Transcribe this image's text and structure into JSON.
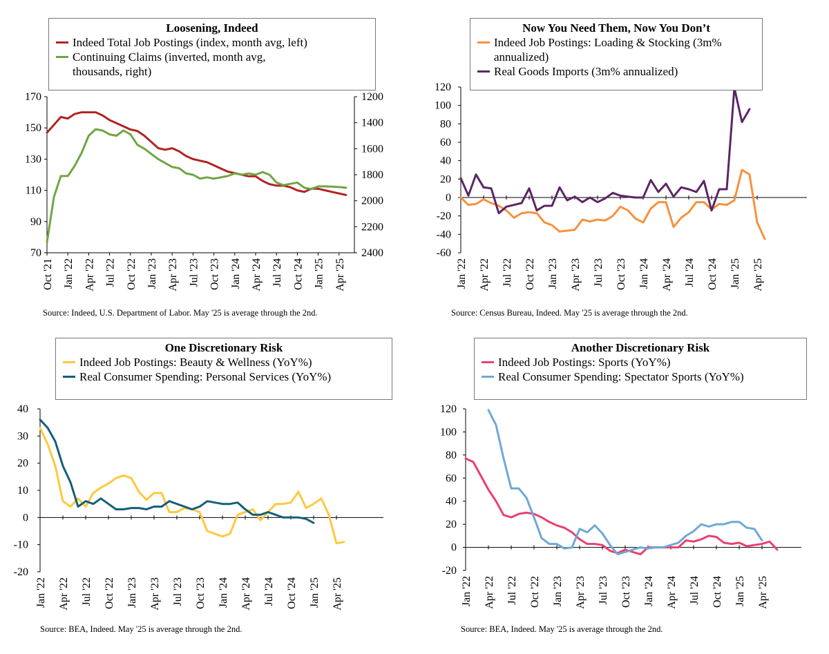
{
  "chart_data": [
    {
      "id": "p1",
      "type": "line",
      "title": "Loosening, Indeed",
      "x_tick_labels": [
        "Oct '21",
        "Jan '22",
        "Apr '22",
        "Jul '22",
        "Oct '22",
        "Jan '23",
        "Apr '23",
        "Jul '23",
        "Oct '23",
        "Jan '24",
        "Apr '24",
        "Jul '24",
        "Oct '24",
        "Jan '25",
        "Apr '25"
      ],
      "ylim_left": [
        70,
        170
      ],
      "yticks_left": [
        "70",
        "90",
        "110",
        "130",
        "150",
        "170"
      ],
      "ylim_right_inverted": [
        2400,
        1200
      ],
      "yticks_right": [
        "1200",
        "1400",
        "1600",
        "1800",
        "2000",
        "2200",
        "2400"
      ],
      "series": [
        {
          "name": "Indeed Total Job Postings (index, month avg, left)",
          "color": "#b22222",
          "axis": "left",
          "start_index": 0,
          "values": [
            147,
            152,
            157,
            156,
            159,
            160,
            160,
            160,
            158,
            155,
            153,
            151,
            149,
            148,
            145,
            141,
            137,
            136,
            137,
            135,
            132,
            130,
            129,
            128,
            126,
            124,
            122,
            121,
            120,
            119,
            119,
            116,
            114,
            113,
            113,
            112,
            110,
            109,
            111,
            111,
            110,
            109,
            108,
            107
          ]
        },
        {
          "name": "Continuing Claims (inverted, month avg, thousands, right)",
          "color": "#70a542",
          "axis": "right",
          "start_index": 0,
          "values": [
            2320,
            1970,
            1810,
            1810,
            1730,
            1630,
            1500,
            1450,
            1460,
            1490,
            1500,
            1460,
            1490,
            1570,
            1600,
            1640,
            1680,
            1710,
            1740,
            1750,
            1790,
            1800,
            1830,
            1820,
            1830,
            1820,
            1810,
            1790,
            1800,
            1790,
            1800,
            1780,
            1800,
            1860,
            1880,
            1870,
            1860,
            1900,
            1910,
            1890,
            1890,
            1892,
            1895,
            1900
          ]
        }
      ],
      "source": "Source: Indeed, U.S. Department of Labor. May '25 is average through the 2nd."
    },
    {
      "id": "p2",
      "type": "line",
      "title": "Now You Need Them, Now You Don’t",
      "x_tick_labels": [
        "Jan '22",
        "Apr '22",
        "Jul '22",
        "Oct '22",
        "Jan '23",
        "Apr '23",
        "Jul '23",
        "Oct '23",
        "Jan '24",
        "Apr '24",
        "Jul '24",
        "Oct '24",
        "Jan '25",
        "Apr '25"
      ],
      "ylim": [
        -60,
        120
      ],
      "yticks": [
        "-60",
        "-40",
        "-20",
        "0",
        "20",
        "40",
        "60",
        "80",
        "100",
        "120"
      ],
      "series": [
        {
          "name": "Indeed Job Postings: Loading & Stocking (3m% annualized)",
          "color": "#f7913d",
          "start_index": 0,
          "values": [
            0,
            -8,
            -7,
            -2,
            -6,
            -9,
            -14,
            -22,
            -17,
            -16,
            -17,
            -27,
            -30,
            -37,
            -36,
            -35,
            -24,
            -26,
            -24,
            -25,
            -20,
            -10,
            -14,
            -23,
            -27,
            -12,
            -5,
            -5,
            -32,
            -22,
            -16,
            -5,
            -5,
            -13,
            -7,
            -8,
            -3,
            30,
            25,
            -27,
            -45
          ]
        },
        {
          "name": "Real Goods Imports (3m% annualized)",
          "color": "#5b2564",
          "start_index": 0,
          "values": [
            21,
            2,
            25,
            11,
            10,
            -17,
            -10,
            -8,
            -6,
            10,
            -14,
            -9,
            -9,
            11,
            -3,
            1,
            -5,
            0,
            -5,
            -1,
            5,
            2,
            1,
            0,
            0,
            19,
            6,
            15,
            1,
            11,
            9,
            6,
            18,
            -14,
            9,
            9,
            119,
            82,
            96
          ]
        }
      ],
      "source": "Source: Census Bureau, Indeed. May '25 is average through the 2nd."
    },
    {
      "id": "p3",
      "type": "line",
      "title": "One Discretionary Risk",
      "x_tick_labels": [
        "Jan '22",
        "Apr '22",
        "Jul '22",
        "Oct '22",
        "Jan '23",
        "Apr '23",
        "Jul '23",
        "Oct '23",
        "Jan '24",
        "Apr '24",
        "Jul '24",
        "Oct '24",
        "Jan '25",
        "Apr '25"
      ],
      "ylim": [
        -20,
        40
      ],
      "yticks": [
        "-20",
        "-10",
        "0",
        "10",
        "20",
        "30",
        "40"
      ],
      "series": [
        {
          "name": "Indeed Job Postings: Beauty & Wellness (YoY%)",
          "color": "#ffc83d",
          "start_index": 0,
          "values": [
            33,
            27,
            19,
            6,
            4,
            7,
            4,
            9,
            11,
            12.5,
            14.5,
            15.5,
            14.5,
            9.5,
            6.5,
            9,
            9,
            2,
            2,
            3.5,
            3,
            2,
            -5,
            -6,
            -7,
            -6,
            1,
            2,
            3,
            -1,
            2,
            5,
            5,
            5.5,
            9.5,
            3.5,
            5,
            7,
            1,
            -9.5,
            -9
          ]
        },
        {
          "name": "Real Consumer Spending: Personal Services (YoY%)",
          "color": "#135f7a",
          "start_index": 0,
          "values": [
            36,
            33,
            28,
            19,
            13,
            4,
            6,
            5,
            7,
            5,
            3,
            3,
            3.5,
            3.5,
            3,
            4,
            4,
            6,
            5,
            4,
            3,
            4,
            6,
            5.5,
            5,
            5,
            5.5,
            3,
            1,
            1,
            2,
            1,
            0,
            0,
            0,
            -0.5,
            -2
          ]
        }
      ],
      "source": "Source: BEA, Indeed. May '25 is average through the 2nd."
    },
    {
      "id": "p4",
      "type": "line",
      "title": "Another Discretionary Risk",
      "x_tick_labels": [
        "Jan '22",
        "Apr '22",
        "Jul '22",
        "Oct '22",
        "Jan '23",
        "Apr '23",
        "Jul '23",
        "Oct '23",
        "Jan '24",
        "Apr '24",
        "Jul '24",
        "Oct '24",
        "Jan '25",
        "Apr '25"
      ],
      "ylim": [
        -20,
        120
      ],
      "yticks": [
        "-20",
        "0",
        "20",
        "40",
        "60",
        "80",
        "100",
        "120"
      ],
      "series": [
        {
          "name": "Indeed Job Postings: Sports (YoY%)",
          "color": "#e8416e",
          "start_index": 0,
          "values": [
            77,
            74,
            62,
            50,
            40,
            28,
            26,
            29,
            30,
            29,
            26,
            22,
            19,
            17,
            13,
            7,
            3,
            3,
            2,
            -3,
            -5,
            -2,
            -4,
            -6,
            0,
            0,
            0,
            0,
            0,
            6,
            5,
            7,
            10,
            9,
            4,
            3,
            4,
            1,
            2,
            3,
            5,
            -2
          ]
        },
        {
          "name": "Real Consumer Spending: Spectator Sports (YoY%)",
          "color": "#6ea8d6",
          "start_index": 3,
          "values": [
            119,
            106,
            77,
            51,
            51,
            43,
            26,
            8,
            3,
            3,
            -1,
            0,
            16,
            13,
            19,
            12,
            2,
            -6,
            -4,
            -2,
            0,
            -1,
            0,
            0,
            2,
            4,
            10,
            14,
            20,
            18,
            20,
            20,
            22,
            22,
            17,
            16,
            6
          ]
        }
      ],
      "source": "Source: BEA, Indeed. May '25 is average through the 2nd."
    }
  ]
}
